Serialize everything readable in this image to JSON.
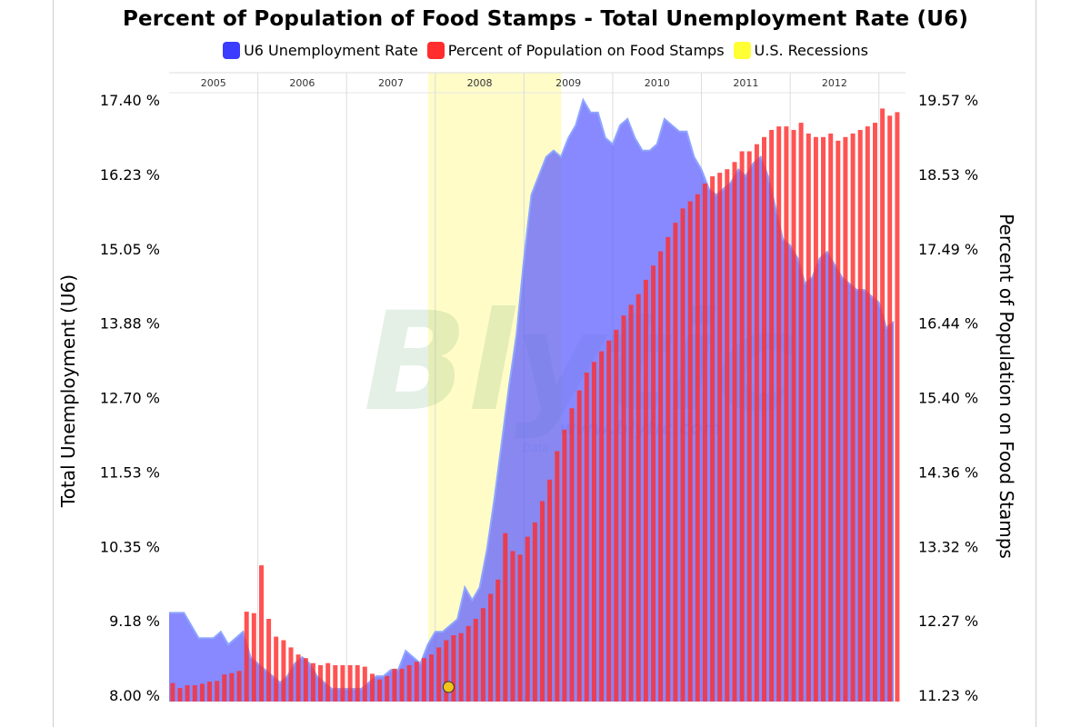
{
  "chart_data": {
    "type": "bar",
    "title": "Percent of Population of Food Stamps - Total Unemployment Rate (U6)",
    "ylabel_left": "Total Unemployment (U6)",
    "ylabel_right": "Percent of Population on Food Stamps",
    "yticks_left": [
      "8.00 %",
      "9.18 %",
      "10.35 %",
      "11.53 %",
      "12.70 %",
      "13.88 %",
      "15.05 %",
      "16.23 %",
      "17.40 %"
    ],
    "yticks_right": [
      "11.23 %",
      "12.27 %",
      "13.32 %",
      "14.36 %",
      "15.40 %",
      "16.44 %",
      "17.49 %",
      "18.53 %",
      "19.57 %"
    ],
    "ylim_left": [
      8.0,
      17.4
    ],
    "ylim_right": [
      11.23,
      19.57
    ],
    "years": [
      "2005",
      "2006",
      "2007",
      "2008",
      "2009",
      "2010",
      "2011",
      "2012"
    ],
    "x_start": 2005.0,
    "x_end": 2013.3,
    "recession": [
      2007.92,
      2009.42
    ],
    "legend": [
      {
        "label": "U6 Unemployment Rate",
        "color": "#3c3cff"
      },
      {
        "label": "Percent of Population on Food Stamps",
        "color": "#ff2d2d"
      },
      {
        "label": "U.S. Recessions",
        "color": "#ffff33"
      }
    ],
    "series": [
      {
        "name": "U6 Unemployment Rate",
        "type": "area",
        "axis": "left",
        "start": 2005.0,
        "step": 0.0833333,
        "values": [
          9.3,
          9.3,
          9.3,
          9.1,
          8.9,
          8.9,
          8.9,
          9.0,
          8.8,
          8.9,
          9.0,
          8.6,
          8.5,
          8.4,
          8.3,
          8.2,
          8.3,
          8.5,
          8.6,
          8.5,
          8.3,
          8.2,
          8.1,
          8.1,
          8.1,
          8.1,
          8.1,
          8.2,
          8.3,
          8.3,
          8.4,
          8.4,
          8.7,
          8.6,
          8.5,
          8.8,
          9.0,
          9.0,
          9.1,
          9.2,
          9.7,
          9.5,
          9.7,
          10.3,
          11.1,
          12.0,
          12.9,
          13.7,
          14.9,
          15.9,
          16.2,
          16.5,
          16.6,
          16.5,
          16.8,
          17.0,
          17.4,
          17.2,
          17.2,
          16.8,
          16.7,
          17.0,
          17.1,
          16.8,
          16.6,
          16.6,
          16.7,
          17.1,
          17.0,
          16.9,
          16.9,
          16.5,
          16.3,
          16.0,
          15.9,
          16.0,
          16.1,
          16.3,
          16.2,
          16.4,
          16.5,
          16.2,
          15.7,
          15.2,
          15.1,
          14.9,
          14.5,
          14.6,
          14.9,
          15.0,
          14.8,
          14.6,
          14.5,
          14.4,
          14.4,
          14.3,
          14.2,
          13.8,
          13.9
        ]
      },
      {
        "name": "Percent of Population on Food Stamps",
        "type": "bar",
        "axis": "right",
        "start": 2005.04,
        "step": 0.0833333,
        "values": [
          11.4,
          11.33,
          11.37,
          11.37,
          11.39,
          11.42,
          11.43,
          11.52,
          11.54,
          11.57,
          12.4,
          12.38,
          13.05,
          12.3,
          12.05,
          12.0,
          11.9,
          11.8,
          11.75,
          11.68,
          11.65,
          11.68,
          11.65,
          11.65,
          11.65,
          11.65,
          11.63,
          11.53,
          11.45,
          11.5,
          11.6,
          11.6,
          11.65,
          11.7,
          11.75,
          11.8,
          11.9,
          12.0,
          12.07,
          12.1,
          12.2,
          12.3,
          12.45,
          12.65,
          12.85,
          13.5,
          13.25,
          13.2,
          13.45,
          13.65,
          13.95,
          14.25,
          14.65,
          14.95,
          15.25,
          15.5,
          15.75,
          15.9,
          16.05,
          16.2,
          16.35,
          16.55,
          16.7,
          16.85,
          17.05,
          17.25,
          17.45,
          17.65,
          17.85,
          18.05,
          18.15,
          18.25,
          18.4,
          18.5,
          18.55,
          18.6,
          18.7,
          18.85,
          18.85,
          18.95,
          19.05,
          19.15,
          19.2,
          19.2,
          19.15,
          19.25,
          19.1,
          19.05,
          19.05,
          19.1,
          19.0,
          19.05,
          19.1,
          19.15,
          19.2,
          19.25,
          19.45,
          19.35,
          19.4,
          19.45,
          19.45,
          19.4,
          19.3
        ]
      }
    ],
    "watermark": "Blytic",
    "watermark_url": "www.blytic.com",
    "watermark_sub": "Data"
  }
}
